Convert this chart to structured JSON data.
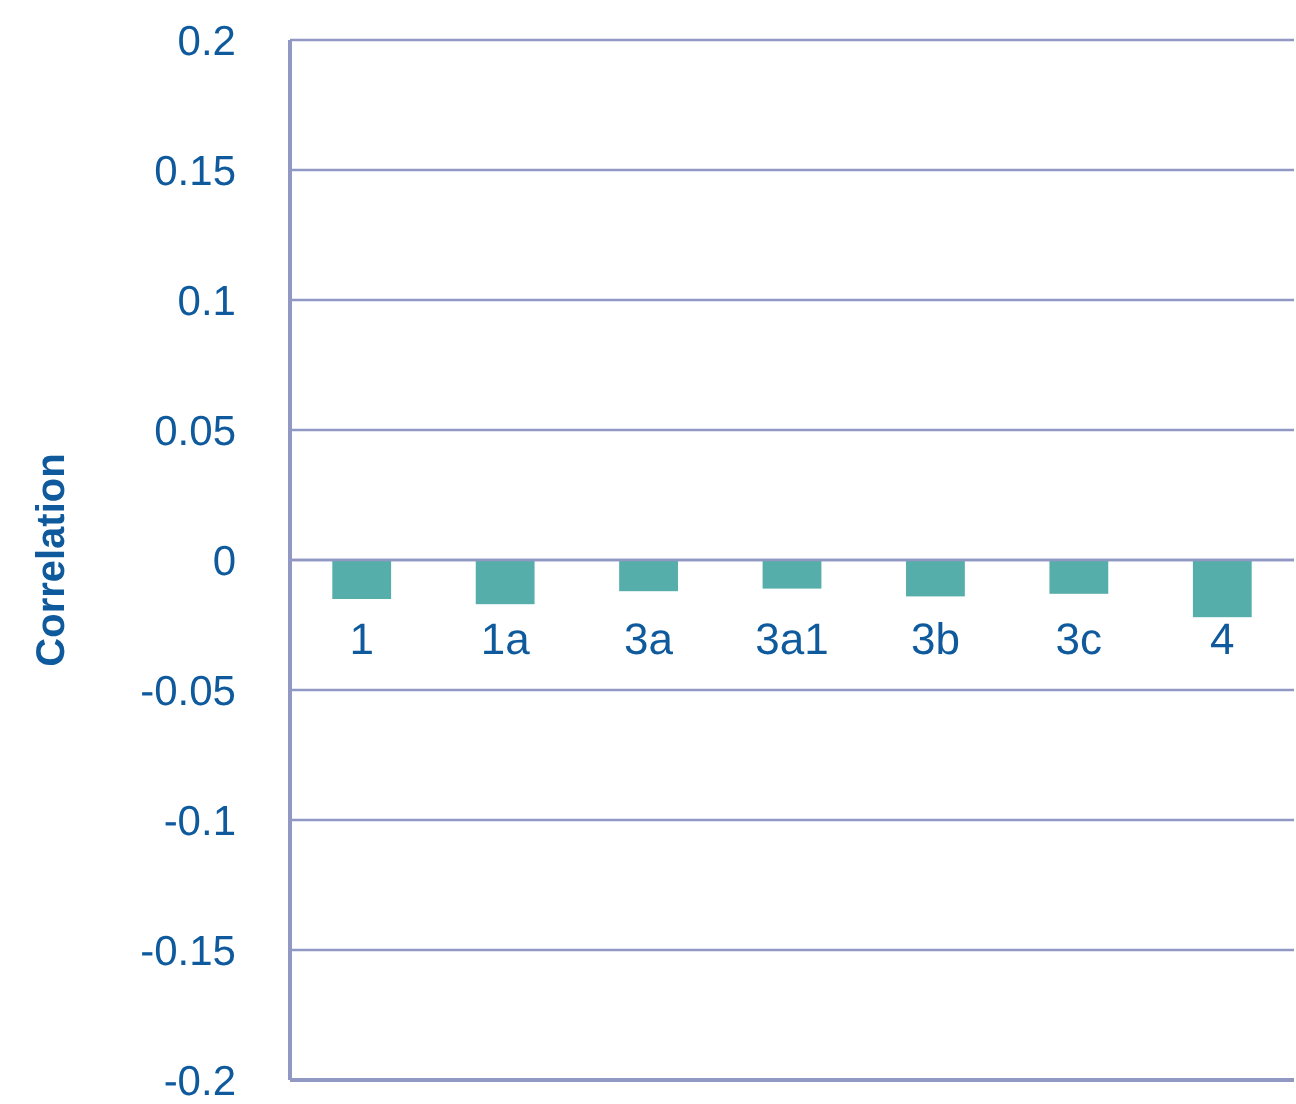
{
  "chart_data": {
    "type": "bar",
    "ylabel": "Correlation",
    "categories": [
      "1",
      "1a",
      "3a",
      "3a1",
      "3b",
      "3c",
      "4"
    ],
    "values": [
      -0.015,
      -0.017,
      -0.012,
      -0.011,
      -0.014,
      -0.013,
      -0.022
    ],
    "color": "#56aeaa",
    "ylim": [
      -0.2,
      0.2
    ],
    "yticks": [
      -0.2,
      -0.15,
      -0.1,
      -0.05,
      0,
      0.05,
      0.1,
      0.15,
      0.2
    ],
    "grid": "y"
  }
}
